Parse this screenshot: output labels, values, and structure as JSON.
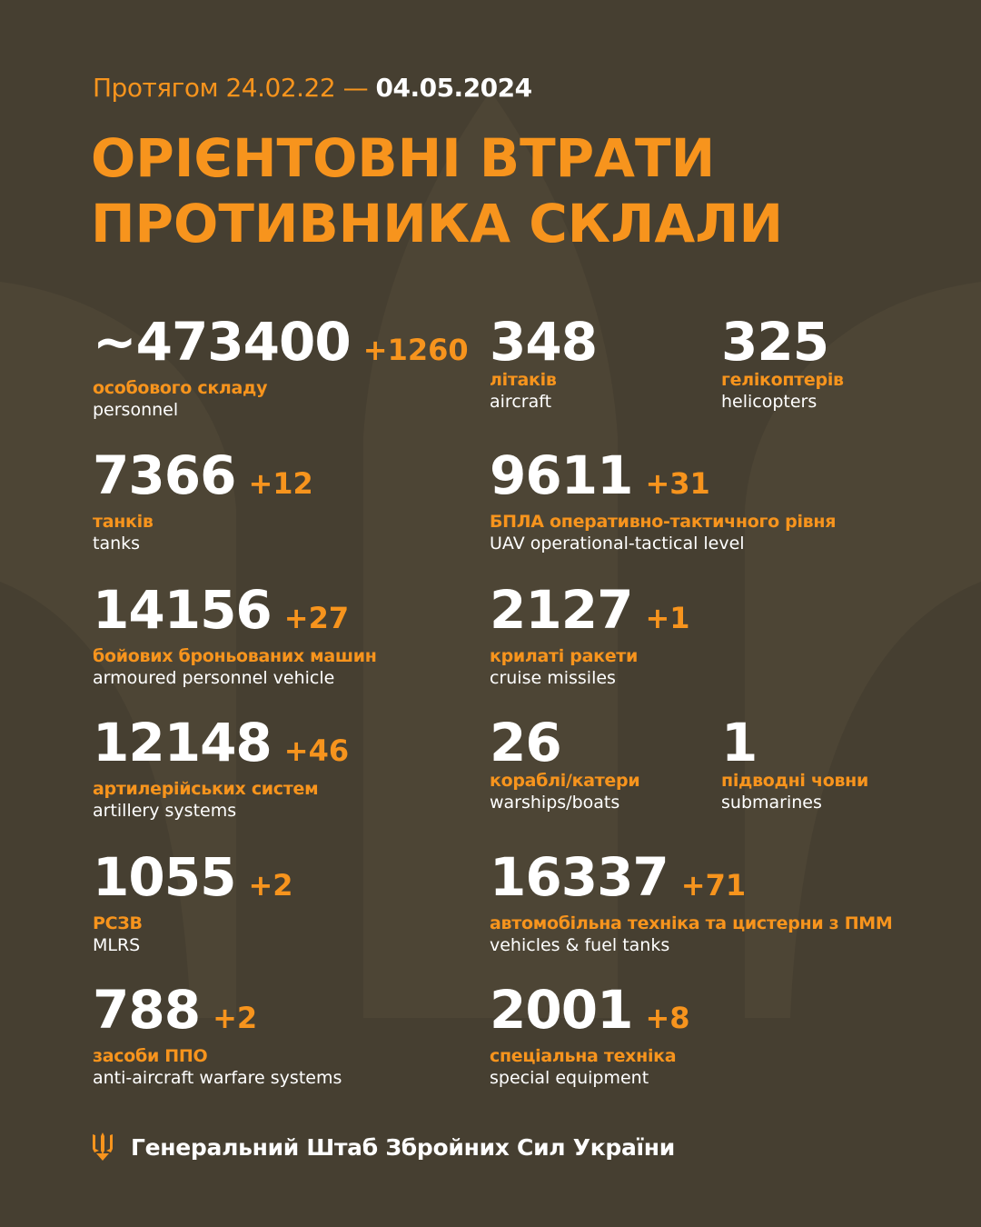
{
  "header": {
    "period_prefix": "Протягом 24.02.22 —",
    "period_date": "04.05.2024",
    "title_line1": "ОРІЄНТОВНІ ВТРАТИ",
    "title_line2": "ПРОТИВНИКА СКЛАЛИ"
  },
  "colors": {
    "background": "#463f31",
    "accent": "#f7941d",
    "text": "#ffffff"
  },
  "items": [
    {
      "id": "personnel",
      "value": "~473400",
      "increment": "+1260",
      "label_ua": "особового складу",
      "label_en": "personnel"
    },
    {
      "id": "aircraft",
      "value": "348",
      "increment": "",
      "label_ua": "літаків",
      "label_en": "aircraft"
    },
    {
      "id": "helicopters",
      "value": "325",
      "increment": "",
      "label_ua": "гелікоптерів",
      "label_en": "helicopters"
    },
    {
      "id": "tanks",
      "value": "7366",
      "increment": "+12",
      "label_ua": "танків",
      "label_en": "tanks"
    },
    {
      "id": "uav",
      "value": "9611",
      "increment": "+31",
      "label_ua": "БПЛА оперативно-тактичного рівня",
      "label_en": "UAV operational-tactical level"
    },
    {
      "id": "apv",
      "value": "14156",
      "increment": "+27",
      "label_ua": "бойових броньованих машин",
      "label_en": "armoured personnel vehicle"
    },
    {
      "id": "cruise-missiles",
      "value": "2127",
      "increment": "+1",
      "label_ua": "крилаті ракети",
      "label_en": "cruise missiles"
    },
    {
      "id": "artillery",
      "value": "12148",
      "increment": "+46",
      "label_ua": "артилерійських систем",
      "label_en": "artillery systems"
    },
    {
      "id": "warships",
      "value": "26",
      "increment": "",
      "label_ua": "кораблі/катери",
      "label_en": "warships/boats"
    },
    {
      "id": "submarines",
      "value": "1",
      "increment": "",
      "label_ua": "підводні човни",
      "label_en": "submarines"
    },
    {
      "id": "mlrs",
      "value": "1055",
      "increment": "+2",
      "label_ua": "РСЗВ",
      "label_en": "MLRS"
    },
    {
      "id": "vehicles",
      "value": "16337",
      "increment": "+71",
      "label_ua": "автомобільна техніка та цистерни з ПММ",
      "label_en": "vehicles & fuel tanks"
    },
    {
      "id": "anti-aircraft",
      "value": "788",
      "increment": "+2",
      "label_ua": "засоби ППО",
      "label_en": "anti-aircraft warfare systems"
    },
    {
      "id": "special-equipment",
      "value": "2001",
      "increment": "+8",
      "label_ua": "спеціальна техніка",
      "label_en": "special equipment"
    }
  ],
  "footer": {
    "text": "Генеральний Штаб Збройних Сил України",
    "icon": "trident-icon"
  }
}
